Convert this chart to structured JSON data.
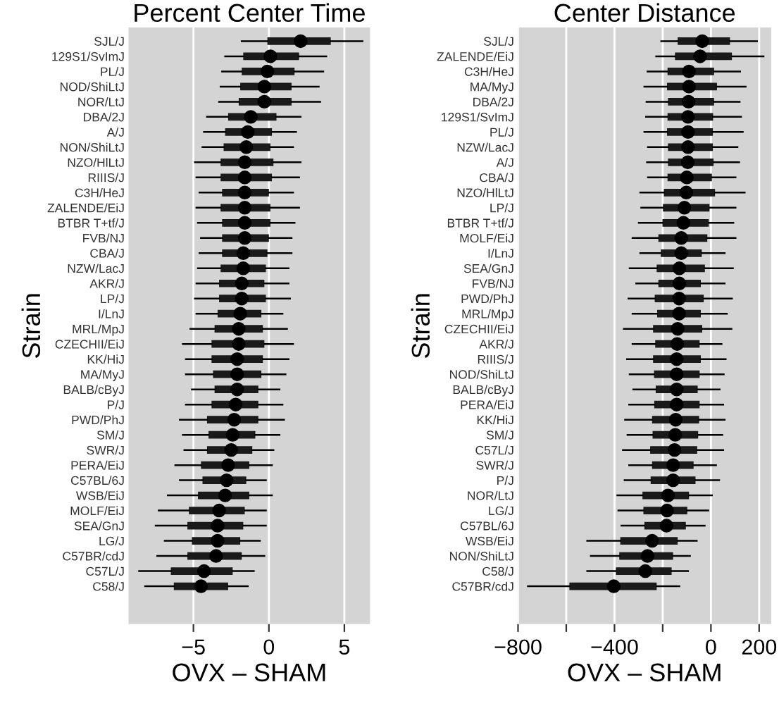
{
  "chart_data": [
    {
      "type": "box",
      "orientation": "horizontal",
      "title": "Percent Center Time",
      "xlabel": "OVX – SHAM",
      "ylabel": "Strain",
      "grid": "x",
      "xlim": [
        -9.3,
        6.7
      ],
      "xticks": [
        -5,
        0,
        5
      ],
      "categories": [
        "SJL/J",
        "129S1/SvImJ",
        "PL/J",
        "NOD/ShiLtJ",
        "NOR/LtJ",
        "DBA/2J",
        "A/J",
        "NON/ShiLtJ",
        "NZO/HlLtJ",
        "RIIIS/J",
        "C3H/HeJ",
        "ZALENDE/EiJ",
        "BTBR T+tf/J",
        "FVB/NJ",
        "CBA/J",
        "NZW/LacJ",
        "AKR/J",
        "LP/J",
        "I/LnJ",
        "MRL/MpJ",
        "CZECHII/EiJ",
        "KK/HiJ",
        "MA/MyJ",
        "BALB/cByJ",
        "P/J",
        "PWD/PhJ",
        "SM/J",
        "SWR/J",
        "PERA/EiJ",
        "C57BL/6J",
        "WSB/EiJ",
        "MOLF/EiJ",
        "SEA/GnJ",
        "LG/J",
        "C57BR/cdJ",
        "C57L/J",
        "C58/J"
      ],
      "boxes": [
        {
          "low": -1.8,
          "q1": -0.1,
          "median": 2.1,
          "q3": 4.1,
          "high": 6.2
        },
        {
          "low": -2.9,
          "q1": -1.7,
          "median": 0.1,
          "q3": 2.0,
          "high": 3.8
        },
        {
          "low": -3.1,
          "q1": -1.8,
          "median": -0.1,
          "q3": 1.7,
          "high": 3.6
        },
        {
          "low": -3.2,
          "q1": -1.9,
          "median": -0.3,
          "q3": 1.5,
          "high": 3.3
        },
        {
          "low": -3.3,
          "q1": -2.0,
          "median": -0.3,
          "q3": 1.5,
          "high": 3.4
        },
        {
          "low": -4.1,
          "q1": -2.7,
          "median": -1.2,
          "q3": 0.5,
          "high": 2.1
        },
        {
          "low": -4.3,
          "q1": -2.9,
          "median": -1.4,
          "q3": 0.2,
          "high": 1.8
        },
        {
          "low": -4.4,
          "q1": -3.0,
          "median": -1.5,
          "q3": 0.1,
          "high": 1.6
        },
        {
          "low": -4.9,
          "q1": -3.2,
          "median": -1.6,
          "q3": 0.3,
          "high": 2.1
        },
        {
          "low": -4.8,
          "q1": -3.2,
          "median": -1.6,
          "q3": 0.2,
          "high": 2.0
        },
        {
          "low": -4.6,
          "q1": -3.1,
          "median": -1.6,
          "q3": 0.0,
          "high": 1.6
        },
        {
          "low": -4.8,
          "q1": -3.2,
          "median": -1.6,
          "q3": 0.1,
          "high": 2.0
        },
        {
          "low": -4.7,
          "q1": -3.1,
          "median": -1.6,
          "q3": 0.1,
          "high": 1.7
        },
        {
          "low": -4.5,
          "q1": -3.1,
          "median": -1.6,
          "q3": 0.0,
          "high": 1.5
        },
        {
          "low": -4.6,
          "q1": -3.1,
          "median": -1.7,
          "q3": -0.1,
          "high": 1.5
        },
        {
          "low": -4.7,
          "q1": -3.2,
          "median": -1.7,
          "q3": -0.2,
          "high": 1.3
        },
        {
          "low": -4.8,
          "q1": -3.3,
          "median": -1.8,
          "q3": -0.3,
          "high": 1.3
        },
        {
          "low": -4.9,
          "q1": -3.3,
          "median": -1.8,
          "q3": -0.2,
          "high": 1.4
        },
        {
          "low": -4.8,
          "q1": -3.4,
          "median": -1.9,
          "q3": -0.5,
          "high": 0.9
        },
        {
          "low": -5.2,
          "q1": -3.6,
          "median": -2.0,
          "q3": -0.4,
          "high": 1.2
        },
        {
          "low": -5.7,
          "q1": -3.8,
          "median": -2.0,
          "q3": -0.3,
          "high": 1.6
        },
        {
          "low": -5.5,
          "q1": -3.8,
          "median": -2.1,
          "q3": -0.4,
          "high": 1.3
        },
        {
          "low": -5.5,
          "q1": -3.7,
          "median": -2.1,
          "q3": -0.5,
          "high": 1.1
        },
        {
          "low": -5.1,
          "q1": -3.6,
          "median": -2.1,
          "q3": -0.7,
          "high": 0.7
        },
        {
          "low": -5.5,
          "q1": -3.8,
          "median": -2.2,
          "q3": -0.7,
          "high": 0.9
        },
        {
          "low": -5.9,
          "q1": -4.1,
          "median": -2.3,
          "q3": -0.7,
          "high": 1.0
        },
        {
          "low": -5.7,
          "q1": -4.0,
          "median": -2.4,
          "q3": -0.9,
          "high": 0.7
        },
        {
          "low": -5.6,
          "q1": -4.1,
          "median": -2.5,
          "q3": -1.1,
          "high": 0.3
        },
        {
          "low": -6.2,
          "q1": -4.5,
          "median": -2.7,
          "q3": -1.3,
          "high": 0.2
        },
        {
          "low": -5.9,
          "q1": -4.4,
          "median": -2.8,
          "q3": -1.5,
          "high": -0.2
        },
        {
          "low": -6.7,
          "q1": -4.7,
          "median": -2.9,
          "q3": -1.3,
          "high": 0.2
        },
        {
          "low": -7.3,
          "q1": -5.3,
          "median": -3.3,
          "q3": -1.6,
          "high": -0.2
        },
        {
          "low": -7.5,
          "q1": -5.4,
          "median": -3.4,
          "q3": -1.7,
          "high": -0.2
        },
        {
          "low": -6.9,
          "q1": -5.1,
          "median": -3.4,
          "q3": -1.9,
          "high": -0.6
        },
        {
          "low": -7.4,
          "q1": -5.4,
          "median": -3.5,
          "q3": -1.8,
          "high": -0.3
        },
        {
          "low": -8.6,
          "q1": -6.5,
          "median": -4.3,
          "q3": -2.4,
          "high": -1.0
        },
        {
          "low": -8.2,
          "q1": -6.3,
          "median": -4.5,
          "q3": -2.7,
          "high": -1.4
        }
      ]
    },
    {
      "type": "box",
      "orientation": "horizontal",
      "title": "Center Distance",
      "xlabel": "OVX – SHAM",
      "ylabel": "Strain",
      "grid": "x",
      "xlim": [
        -800,
        250
      ],
      "xticks": [
        -800,
        {
          "value": -600,
          "label": null
        },
        -400,
        {
          "value": -200,
          "label": null
        },
        0,
        200
      ],
      "categories": [
        "SJL/J",
        "ZALENDE/EiJ",
        "C3H/HeJ",
        "MA/MyJ",
        "DBA/2J",
        "129S1/SvImJ",
        "PL/J",
        "NZW/LacJ",
        "A/J",
        "CBA/J",
        "NZO/HlLtJ",
        "LP/J",
        "BTBR T+tf/J",
        "MOLF/EiJ",
        "I/LnJ",
        "SEA/GnJ",
        "FVB/NJ",
        "PWD/PhJ",
        "MRL/MpJ",
        "CZECHII/EiJ",
        "AKR/J",
        "RIIIS/J",
        "NOD/ShiLtJ",
        "BALB/cByJ",
        "PERA/EiJ",
        "KK/HiJ",
        "SM/J",
        "C57L/J",
        "SWR/J",
        "P/J",
        "NOR/LtJ",
        "LG/J",
        "C57BL/6J",
        "WSB/EiJ",
        "NON/ShiLtJ",
        "C58/J",
        "C57BR/cdJ"
      ],
      "boxes": [
        {
          "low": -206,
          "q1": -138,
          "median": -36,
          "q3": 79,
          "high": 191
        },
        {
          "low": -227,
          "q1": -149,
          "median": -45,
          "q3": 87,
          "high": 218
        },
        {
          "low": -263,
          "q1": -180,
          "median": -91,
          "q3": 13,
          "high": 121
        },
        {
          "low": -276,
          "q1": -182,
          "median": -91,
          "q3": 25,
          "high": 144
        },
        {
          "low": -267,
          "q1": -178,
          "median": -93,
          "q3": 13,
          "high": 119
        },
        {
          "low": -269,
          "q1": -180,
          "median": -95,
          "q3": 9,
          "high": 125
        },
        {
          "low": -276,
          "q1": -182,
          "median": -95,
          "q3": 8,
          "high": 132
        },
        {
          "low": -261,
          "q1": -178,
          "median": -95,
          "q3": 8,
          "high": 110
        },
        {
          "low": -265,
          "q1": -178,
          "median": -96,
          "q3": 11,
          "high": 117
        },
        {
          "low": -261,
          "q1": -180,
          "median": -100,
          "q3": 4,
          "high": 102
        },
        {
          "low": -293,
          "q1": -195,
          "median": -102,
          "q3": 17,
          "high": 140
        },
        {
          "low": -289,
          "q1": -199,
          "median": -110,
          "q3": -6,
          "high": 102
        },
        {
          "low": -299,
          "q1": -201,
          "median": -114,
          "q3": -9,
          "high": 93
        },
        {
          "low": -325,
          "q1": -218,
          "median": -123,
          "q3": -15,
          "high": 102
        },
        {
          "low": -293,
          "q1": -208,
          "median": -123,
          "q3": -38,
          "high": 57
        },
        {
          "low": -337,
          "q1": -225,
          "median": -131,
          "q3": -25,
          "high": 91
        },
        {
          "low": -310,
          "q1": -218,
          "median": -131,
          "q3": -42,
          "high": 57
        },
        {
          "low": -342,
          "q1": -233,
          "median": -132,
          "q3": -30,
          "high": 87
        },
        {
          "low": -325,
          "q1": -223,
          "median": -132,
          "q3": -42,
          "high": 66
        },
        {
          "low": -361,
          "q1": -240,
          "median": -138,
          "q3": -36,
          "high": 85
        },
        {
          "low": -325,
          "q1": -231,
          "median": -140,
          "q3": -47,
          "high": 44
        },
        {
          "low": -348,
          "q1": -240,
          "median": -142,
          "q3": -42,
          "high": 61
        },
        {
          "low": -337,
          "q1": -236,
          "median": -142,
          "q3": -47,
          "high": 53
        },
        {
          "low": -322,
          "q1": -229,
          "median": -142,
          "q3": -55,
          "high": 36
        },
        {
          "low": -339,
          "q1": -235,
          "median": -142,
          "q3": -47,
          "high": 51
        },
        {
          "low": -356,
          "q1": -244,
          "median": -146,
          "q3": -49,
          "high": 57
        },
        {
          "low": -346,
          "q1": -242,
          "median": -148,
          "q3": -53,
          "high": 47
        },
        {
          "low": -365,
          "q1": -252,
          "median": -151,
          "q3": -57,
          "high": 51
        },
        {
          "low": -339,
          "q1": -244,
          "median": -157,
          "q3": -72,
          "high": 21
        },
        {
          "low": -358,
          "q1": -250,
          "median": -157,
          "q3": -64,
          "high": 34
        },
        {
          "low": -388,
          "q1": -284,
          "median": -178,
          "q3": -91,
          "high": 4
        },
        {
          "low": -384,
          "q1": -280,
          "median": -182,
          "q3": -98,
          "high": -11
        },
        {
          "low": -371,
          "q1": -276,
          "median": -184,
          "q3": -104,
          "high": -26
        },
        {
          "low": -513,
          "q1": -376,
          "median": -244,
          "q3": -138,
          "high": -59
        },
        {
          "low": -498,
          "q1": -380,
          "median": -263,
          "q3": -157,
          "high": -87
        },
        {
          "low": -513,
          "q1": -394,
          "median": -272,
          "q3": -163,
          "high": -95
        },
        {
          "low": -759,
          "q1": -587,
          "median": -403,
          "q3": -225,
          "high": -131
        }
      ]
    }
  ]
}
